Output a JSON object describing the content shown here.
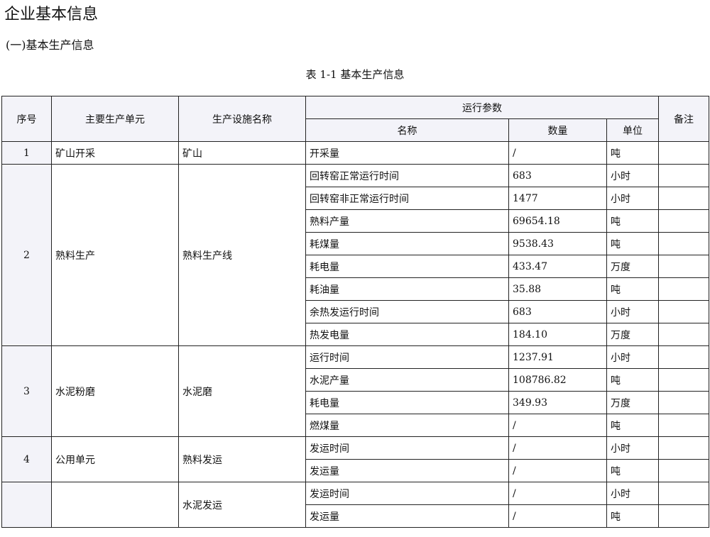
{
  "title": "企业基本信息",
  "section": "(一)基本生产信息",
  "caption": "表 1-1 基本生产信息",
  "headers": {
    "seq": "序号",
    "unit": "主要生产单元",
    "facility": "生产设施名称",
    "params": "运行参数",
    "name": "名称",
    "qty": "数量",
    "uom": "单位",
    "remark": "备注"
  },
  "groups": [
    {
      "seq": "1",
      "unit": "矿山开采",
      "facility": "矿山",
      "rows": [
        {
          "name": "开采量",
          "qty": "/",
          "uom": "吨"
        }
      ]
    },
    {
      "seq": "2",
      "unit": "熟料生产",
      "facility": "熟料生产线",
      "rows": [
        {
          "name": "回转窑正常运行时间",
          "qty": "683",
          "uom": "小时"
        },
        {
          "name": "回转窑非正常运行时间",
          "qty": "1477",
          "uom": "小时"
        },
        {
          "name": "熟料产量",
          "qty": "69654.18",
          "uom": "吨"
        },
        {
          "name": "耗煤量",
          "qty": "9538.43",
          "uom": "吨"
        },
        {
          "name": "耗电量",
          "qty": "433.47",
          "uom": "万度"
        },
        {
          "name": "耗油量",
          "qty": "35.88",
          "uom": "吨"
        },
        {
          "name": "余热发运行时间",
          "qty": "683",
          "uom": "小时"
        },
        {
          "name": "热发电量",
          "qty": "184.10",
          "uom": "万度"
        }
      ]
    },
    {
      "seq": "3",
      "unit": "水泥粉磨",
      "facility": "水泥磨",
      "rows": [
        {
          "name": "运行时间",
          "qty": "1237.91",
          "uom": "小时"
        },
        {
          "name": "水泥产量",
          "qty": "108786.82",
          "uom": "吨"
        },
        {
          "name": "耗电量",
          "qty": "349.93",
          "uom": "万度"
        },
        {
          "name": "燃煤量",
          "qty": "/",
          "uom": "吨"
        }
      ]
    },
    {
      "seq": "4",
      "unit": "公用单元",
      "facility": "熟料发运",
      "rows": [
        {
          "name": "发运时间",
          "qty": "/",
          "uom": "小时"
        },
        {
          "name": "发运量",
          "qty": "/",
          "uom": "吨"
        }
      ]
    },
    {
      "seq": "",
      "unit": "",
      "facility": "水泥发运",
      "rows": [
        {
          "name": "发运时间",
          "qty": "/",
          "uom": "小时"
        },
        {
          "name": "发运量",
          "qty": "/",
          "uom": "吨"
        }
      ]
    }
  ]
}
